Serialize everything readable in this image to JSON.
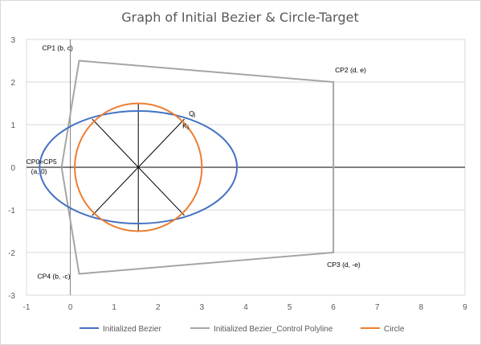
{
  "chart_data": {
    "type": "line",
    "title": "Graph of Initial Bezier & Circle-Target",
    "xlim": [
      -1,
      9
    ],
    "ylim": [
      -3,
      3
    ],
    "x_ticks": [
      "-1",
      "0",
      "1",
      "2",
      "3",
      "4",
      "5",
      "6",
      "7",
      "8",
      "9"
    ],
    "y_ticks": [
      "3",
      "2",
      "1",
      "0",
      "-1",
      "-2",
      "-3"
    ],
    "grid": "horizontal",
    "legend_position": "bottom",
    "colors": {
      "bezier": "#4472C4",
      "polyline": "#A5A5A5",
      "circle": "#ED7D31",
      "grid": "#d9d9d9",
      "axis": "#000000"
    },
    "series": [
      {
        "name": "Initialized Bezier",
        "kind": "ellipse",
        "center": [
          1.55,
          0
        ],
        "rx": 2.25,
        "ry": 1.32
      },
      {
        "name": "Initialized  Bezier_Control  Polyline",
        "points": [
          [
            -0.2,
            0
          ],
          [
            0.2,
            2.5
          ],
          [
            6,
            2
          ],
          [
            6,
            -2
          ],
          [
            0.2,
            -2.5
          ],
          [
            -0.2,
            0
          ]
        ]
      },
      {
        "name": "Circle",
        "kind": "ellipse",
        "center": [
          1.55,
          0
        ],
        "rx": 1.45,
        "ry": 1.5
      }
    ],
    "spokes": [
      [
        [
          0.5,
          1.13
        ],
        [
          2.6,
          -1.13
        ]
      ],
      [
        [
          2.6,
          1.13
        ],
        [
          0.5,
          -1.13
        ]
      ],
      [
        [
          1.55,
          1.5
        ],
        [
          1.55,
          -1.5
        ]
      ],
      [
        [
          -0.2,
          0
        ],
        [
          3.8,
          0
        ]
      ]
    ],
    "annotations": [
      {
        "text": "CP1 (b, c)",
        "x": 0.2,
        "y": 2.5
      },
      {
        "text": "CP2 (d, e)",
        "x": 6,
        "y": 2
      },
      {
        "text": "CP0=CP5",
        "x": -0.2,
        "y": 0
      },
      {
        "text": "(a, 0)",
        "x": -0.2,
        "y": 0
      },
      {
        "text": "Q",
        "x": 2.65,
        "y": 1.15
      },
      {
        "text": "i",
        "x": 2.65,
        "y": 1.15
      },
      {
        "text": "K",
        "x": 2.5,
        "y": 0.95
      },
      {
        "text": "i",
        "x": 2.5,
        "y": 0.95
      },
      {
        "text": "CP3 (d, -e)",
        "x": 6,
        "y": -2
      },
      {
        "text": "CP4 (b, -c)",
        "x": 0.2,
        "y": -2.5
      }
    ]
  }
}
